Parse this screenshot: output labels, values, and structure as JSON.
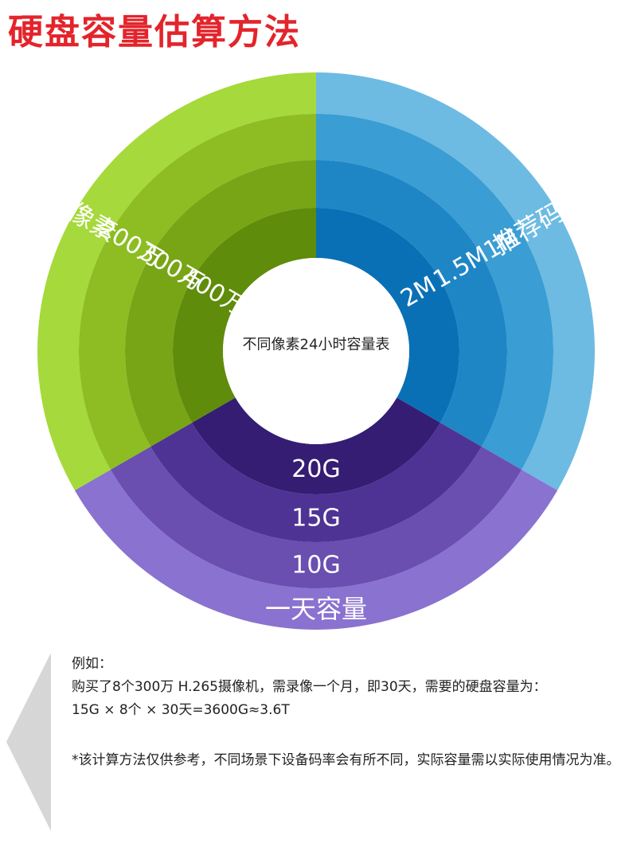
{
  "title": "硬盘容量估算方法",
  "center_label": "不同像素24小时容量表",
  "pixel": {
    "header": "像素",
    "rings": [
      "200万",
      "300万",
      "400万"
    ],
    "colors": [
      "#a6d93b",
      "#8dbd22",
      "#78a515",
      "#5f8c0a"
    ]
  },
  "bitrate": {
    "header": "推荐码率",
    "rings": [
      "1M",
      "1.5M",
      "2M"
    ],
    "colors": [
      "#6dbbe2",
      "#3a9dd3",
      "#1f86c6",
      "#0a70b6"
    ]
  },
  "capacity": {
    "header": "一天容量",
    "rings": [
      "10G",
      "15G",
      "20G"
    ],
    "colors": [
      "#8a72d0",
      "#6a4eb0",
      "#4e3394",
      "#341d72"
    ]
  },
  "note": {
    "label": "例如：",
    "line1": "购买了8个300万 H.265摄像机，需录像一个月，即30天，需要的硬盘容量为：",
    "line2": "15G × 8个 × 30天=3600G≈3.6T",
    "disclaimer": "*该计算方法仅供参考，不同场景下设备码率会有所不同，实际容量需以实际使用情况为准。"
  }
}
